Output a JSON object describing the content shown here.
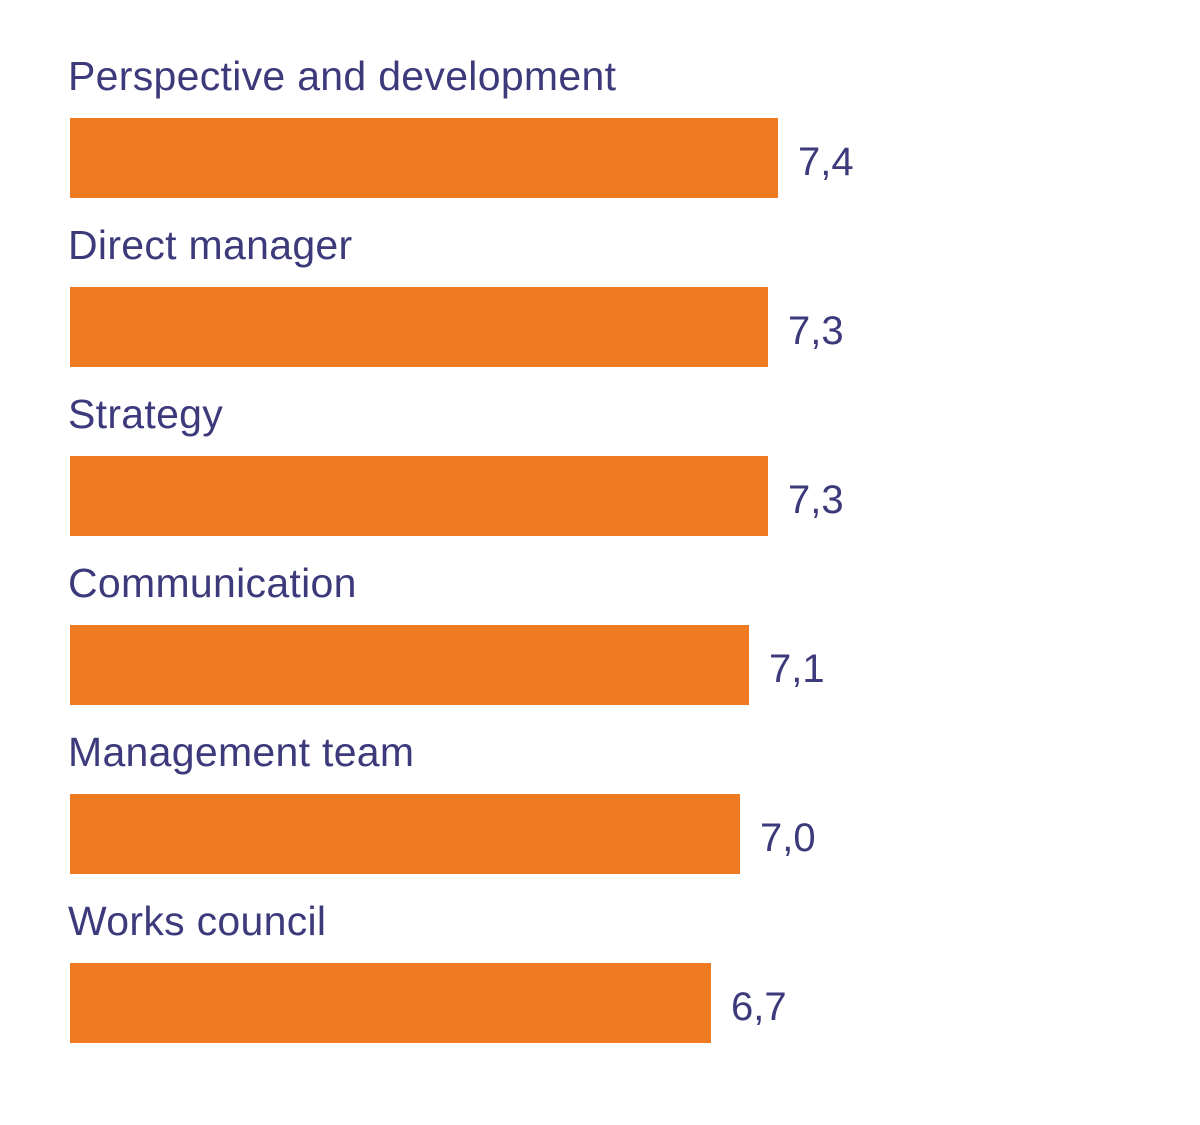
{
  "chart_data": {
    "type": "bar",
    "orientation": "horizontal",
    "categories": [
      "Perspective and development",
      "Direct manager",
      "Strategy",
      "Communication",
      "Management team",
      "Works council"
    ],
    "values": [
      7.4,
      7.3,
      7.3,
      7.1,
      7.0,
      6.7
    ],
    "value_labels": [
      "7,4",
      "7,3",
      "7,3",
      "7,1",
      "7,0",
      "6,7"
    ],
    "xlim": [
      0,
      7.4
    ],
    "grid": false,
    "legend": "none",
    "colors": {
      "bar": "#ee7b22",
      "text": "#3d3a7c"
    }
  }
}
